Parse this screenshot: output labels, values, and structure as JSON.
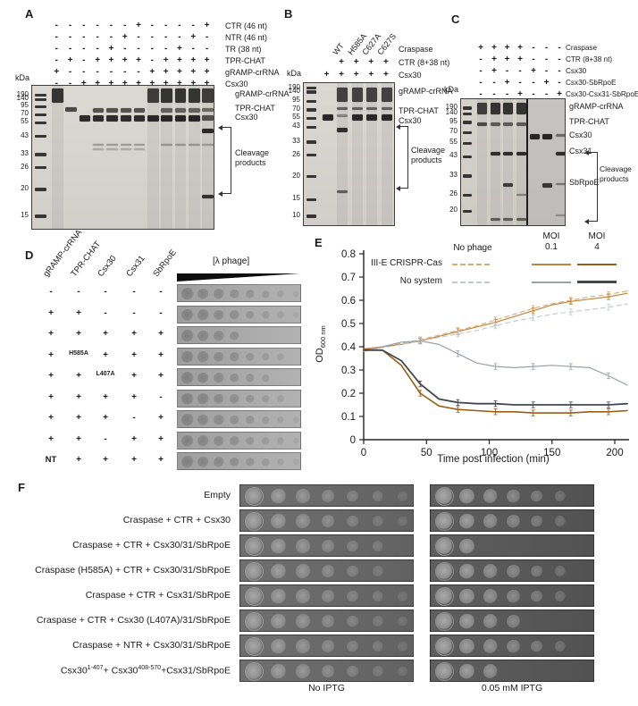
{
  "figure": {
    "panel_a": {
      "label": "A",
      "kda": "kDa",
      "conditions": [
        {
          "label": "CTR (46 nt)",
          "signs": [
            "-",
            "-",
            "-",
            "-",
            "-",
            "-",
            "+",
            "-",
            "-",
            "-",
            "-",
            "+"
          ]
        },
        {
          "label": "NTR (46 nt)",
          "signs": [
            "-",
            "-",
            "-",
            "-",
            "-",
            "+",
            "-",
            "-",
            "-",
            "-",
            "+",
            "-"
          ]
        },
        {
          "label": "TR (38 nt)",
          "signs": [
            "-",
            "-",
            "-",
            "-",
            "+",
            "-",
            "-",
            "-",
            "-",
            "+",
            "-",
            "-"
          ]
        },
        {
          "label": "TPR-CHAT",
          "signs": [
            "-",
            "+",
            "-",
            "+",
            "+",
            "+",
            "+",
            "-",
            "+",
            "+",
            "+",
            "+"
          ]
        },
        {
          "label": "gRAMP-crRNA",
          "signs": [
            "+",
            "-",
            "-",
            "-",
            "-",
            "-",
            "-",
            "+",
            "+",
            "+",
            "+",
            "+"
          ]
        },
        {
          "label": "Csx30",
          "signs": [
            "-",
            "-",
            "+",
            "+",
            "+",
            "+",
            "+",
            "+",
            "+",
            "+",
            "+",
            "+"
          ]
        }
      ],
      "markers_kda": [
        190,
        140,
        95,
        70,
        55,
        43,
        33,
        26,
        20,
        15
      ],
      "band_labels": [
        "gRAMP-crRNA",
        "TPR-CHAT",
        "Csx30"
      ],
      "cleavage_label": "Cleavage products",
      "lanes": [
        [
          [
            0.02,
            0.1,
            0.85
          ]
        ],
        [
          [
            0.15,
            0.03,
            0.75
          ]
        ],
        [
          [
            0.205,
            0.042,
            0.9
          ]
        ],
        [
          [
            0.155,
            0.028,
            0.7
          ],
          [
            0.205,
            0.042,
            0.9
          ],
          [
            0.4,
            0.016,
            0.3
          ],
          [
            0.435,
            0.012,
            0.22
          ]
        ],
        [
          [
            0.155,
            0.028,
            0.7
          ],
          [
            0.205,
            0.042,
            0.9
          ],
          [
            0.4,
            0.016,
            0.3
          ],
          [
            0.435,
            0.012,
            0.22
          ]
        ],
        [
          [
            0.155,
            0.028,
            0.7
          ],
          [
            0.205,
            0.042,
            0.9
          ],
          [
            0.4,
            0.016,
            0.3
          ],
          [
            0.435,
            0.012,
            0.22
          ]
        ],
        [
          [
            0.155,
            0.028,
            0.7
          ],
          [
            0.205,
            0.042,
            0.9
          ],
          [
            0.4,
            0.016,
            0.3
          ],
          [
            0.435,
            0.012,
            0.22
          ]
        ],
        [
          [
            0.02,
            0.1,
            0.8
          ],
          [
            0.205,
            0.044,
            0.92
          ]
        ],
        [
          [
            0.02,
            0.1,
            0.85
          ],
          [
            0.155,
            0.028,
            0.6
          ],
          [
            0.205,
            0.044,
            0.92
          ],
          [
            0.4,
            0.016,
            0.3
          ]
        ],
        [
          [
            0.02,
            0.1,
            0.85
          ],
          [
            0.155,
            0.028,
            0.6
          ],
          [
            0.205,
            0.044,
            0.92
          ],
          [
            0.4,
            0.016,
            0.3
          ]
        ],
        [
          [
            0.02,
            0.1,
            0.85
          ],
          [
            0.155,
            0.028,
            0.6
          ],
          [
            0.205,
            0.044,
            0.92
          ],
          [
            0.4,
            0.016,
            0.3
          ]
        ],
        [
          [
            0.02,
            0.1,
            0.8
          ],
          [
            0.155,
            0.026,
            0.55
          ],
          [
            0.205,
            0.038,
            0.7
          ],
          [
            0.295,
            0.03,
            0.9
          ],
          [
            0.4,
            0.016,
            0.28
          ],
          [
            0.755,
            0.024,
            0.85
          ]
        ]
      ]
    },
    "panel_b": {
      "label": "B",
      "kda": "kDa",
      "variant_group_label": "Craspase",
      "variants": [
        "WT",
        "H585A",
        "C627A",
        "C627S"
      ],
      "conditions": [
        {
          "label": "CTR (8+38 nt)",
          "signs": [
            "",
            "+",
            "+",
            "+",
            "+"
          ]
        },
        {
          "label": "Csx30",
          "signs": [
            "+",
            "+",
            "+",
            "+",
            "+"
          ]
        }
      ],
      "markers_kda": [
        190,
        140,
        95,
        70,
        55,
        43,
        33,
        26,
        20,
        15,
        10
      ],
      "band_labels": [
        "gRAMP-crRNA",
        "TPR-CHAT",
        "Csx30"
      ],
      "cleavage_label": "Cleavage products",
      "lanes": [
        [
          [
            0.215,
            0.048,
            0.92
          ]
        ],
        [
          [
            0.03,
            0.1,
            0.78
          ],
          [
            0.165,
            0.022,
            0.6
          ],
          [
            0.215,
            0.02,
            0.4
          ],
          [
            0.31,
            0.034,
            0.88
          ],
          [
            0.745,
            0.018,
            0.6
          ]
        ],
        [
          [
            0.03,
            0.1,
            0.78
          ],
          [
            0.165,
            0.022,
            0.6
          ],
          [
            0.215,
            0.044,
            0.92
          ]
        ],
        [
          [
            0.03,
            0.1,
            0.78
          ],
          [
            0.165,
            0.022,
            0.6
          ],
          [
            0.215,
            0.044,
            0.92
          ]
        ],
        [
          [
            0.03,
            0.1,
            0.78
          ],
          [
            0.165,
            0.022,
            0.6
          ],
          [
            0.215,
            0.044,
            0.92
          ]
        ]
      ]
    },
    "panel_c": {
      "label": "C",
      "kda": "kDa",
      "conditions": [
        {
          "label": "Craspase",
          "signs": [
            "+",
            "+",
            "+",
            "+",
            "-",
            "-",
            "-"
          ]
        },
        {
          "label": "CTR (8+38 nt)",
          "signs": [
            "-",
            "+",
            "+",
            "+",
            "-",
            "-",
            "-"
          ]
        },
        {
          "label": "Csx30",
          "signs": [
            "-",
            "+",
            "-",
            "-",
            "+",
            "-",
            "-"
          ]
        },
        {
          "label": "Csx30-SbRpoE",
          "signs": [
            "-",
            "-",
            "+",
            "-",
            "-",
            "+",
            "-"
          ]
        },
        {
          "label": "Csx30-Csx31-SbRpoE",
          "signs": [
            "-",
            "-",
            "-",
            "+",
            "-",
            "-",
            "+"
          ]
        }
      ],
      "markers_kda": [
        190,
        140,
        95,
        70,
        55,
        43,
        33,
        26,
        20
      ],
      "band_labels": [
        "gRAMP-crRNA",
        "TPR-CHAT",
        "Csx30",
        "Csx31",
        "SbRpoE"
      ],
      "cleavage_label": "Cleavage products",
      "lanes": [
        [
          [
            0.03,
            0.09,
            0.8
          ],
          [
            0.185,
            0.022,
            0.72
          ]
        ],
        [
          [
            0.03,
            0.09,
            0.85
          ],
          [
            0.185,
            0.022,
            0.62
          ],
          [
            0.41,
            0.032,
            0.88
          ],
          [
            0.93,
            0.018,
            0.6
          ]
        ],
        [
          [
            0.03,
            0.09,
            0.85
          ],
          [
            0.185,
            0.022,
            0.62
          ],
          [
            0.41,
            0.032,
            0.88
          ],
          [
            0.655,
            0.032,
            0.8
          ],
          [
            0.93,
            0.018,
            0.6
          ]
        ],
        [
          [
            0.03,
            0.09,
            0.85
          ],
          [
            0.185,
            0.022,
            0.62
          ],
          [
            0.41,
            0.032,
            0.88
          ],
          [
            0.74,
            0.018,
            0.4
          ],
          [
            0.93,
            0.018,
            0.6
          ]
        ],
        [
          [
            0.275,
            0.042,
            0.92
          ]
        ],
        [
          [
            0.275,
            0.042,
            0.92
          ],
          [
            0.655,
            0.034,
            0.82
          ]
        ],
        [
          [
            0.275,
            0.022,
            0.5
          ],
          [
            0.41,
            0.034,
            0.88
          ],
          [
            0.655,
            0.018,
            0.45
          ],
          [
            0.9,
            0.014,
            0.3
          ]
        ]
      ]
    },
    "panel_d": {
      "label": "D",
      "columns": [
        "gRAMP-crRNA",
        "TPR-CHAT",
        "Csx30",
        "Csx31",
        "SbRpoE"
      ],
      "phage_label": "[λ phage]",
      "rows": [
        {
          "signs": [
            "-",
            "-",
            "-",
            "-",
            "-"
          ],
          "spots": 8
        },
        {
          "signs": [
            "+",
            "+",
            "-",
            "-",
            "-"
          ],
          "spots": 8
        },
        {
          "signs": [
            "+",
            "+",
            "+",
            "+",
            "+"
          ],
          "spots": 4
        },
        {
          "signs": [
            "+",
            "H585A",
            "+",
            "+",
            "+"
          ],
          "spots": 7
        },
        {
          "signs": [
            "+",
            "+",
            "L407A",
            "+",
            "+"
          ],
          "spots": 6
        },
        {
          "signs": [
            "+",
            "+",
            "+",
            "+",
            "-"
          ],
          "spots": 7
        },
        {
          "signs": [
            "+",
            "+",
            "+",
            "-",
            "+"
          ],
          "spots": 8
        },
        {
          "signs": [
            "+",
            "+",
            "-",
            "+",
            "+"
          ],
          "spots": 8
        },
        {
          "signs": [
            "NT",
            "+",
            "+",
            "+",
            "+"
          ],
          "spots": 8
        }
      ]
    },
    "panel_e": {
      "label": "E"
    },
    "panel_f": {
      "label": "F",
      "rows": [
        {
          "label": "Empty",
          "left_spots": 7,
          "right_spots": 6
        },
        {
          "label": "Craspase + CTR  + Csx30",
          "left_spots": 7,
          "right_spots": 6
        },
        {
          "label": "Craspase + CTR  + Csx30/31/SbRpoE",
          "left_spots": 6,
          "right_spots": 2
        },
        {
          "label": "Craspase (H585A) + CTR  + Csx30/31/SbRpoE",
          "left_spots": 6,
          "right_spots": 6
        },
        {
          "label": "Craspase + CTR  + Csx31/SbRpoE",
          "left_spots": 7,
          "right_spots": 6
        },
        {
          "label": "Craspase + CTR  + Csx30 (L407A)/31/SbRpoE",
          "left_spots": 7,
          "right_spots": 4
        },
        {
          "label": "Craspase + NTR  + Csx30/31/SbRpoE",
          "left_spots": 7,
          "right_spots": 6
        },
        {
          "label": "Csx30 1-407 + Csx30 408-570 + Csx31/SbRpoE",
          "parts": [
            "Csx30",
            "1-407",
            "+ Csx30",
            "408-570",
            "+Csx31/SbRpoE"
          ],
          "left_spots": 7,
          "right_spots": 3
        }
      ],
      "footer_left": "No IPTG",
      "footer_right": "0.05 mM IPTG"
    }
  },
  "chart_data": {
    "type": "line",
    "xlabel": "Time post infection (min)",
    "ylabel_prefix": "OD",
    "ylabel_sub": "600 nm",
    "xlim": [
      0,
      215
    ],
    "ylim": [
      0,
      0.8
    ],
    "ytick_step": 0.1,
    "xticks": [
      0,
      50,
      100,
      150,
      200
    ],
    "grid": false,
    "legend": {
      "position": "top-right",
      "col1": "No phage",
      "col2a": "MOI",
      "col2b": "0.1",
      "col3a": "MOI",
      "col3b": "4",
      "row1": "III-E CRISPR-Cas",
      "row2": "No system"
    },
    "x": [
      0,
      15,
      30,
      45,
      60,
      75,
      90,
      105,
      120,
      135,
      150,
      165,
      180,
      195,
      210
    ],
    "series": [
      {
        "name": "III-E CRISPR-Cas, No phage",
        "color": "#d8ab74",
        "dash": true,
        "width": 1.1,
        "values": [
          0.39,
          0.4,
          0.415,
          0.43,
          0.45,
          0.47,
          0.49,
          0.515,
          0.54,
          0.565,
          0.585,
          0.6,
          0.615,
          0.625,
          0.64
        ]
      },
      {
        "name": "III-E CRISPR-Cas, MOI 0.1",
        "color": "#c0853e",
        "dash": false,
        "width": 1.2,
        "values": [
          0.39,
          0.4,
          0.41,
          0.425,
          0.445,
          0.465,
          0.485,
          0.505,
          0.53,
          0.555,
          0.58,
          0.595,
          0.605,
          0.615,
          0.63
        ]
      },
      {
        "name": "III-E CRISPR-Cas, MOI 4",
        "color": "#9c5d15",
        "dash": false,
        "width": 1.6,
        "values": [
          0.39,
          0.385,
          0.32,
          0.2,
          0.145,
          0.13,
          0.125,
          0.12,
          0.12,
          0.115,
          0.115,
          0.115,
          0.12,
          0.12,
          0.125
        ]
      },
      {
        "name": "No system, No phage",
        "color": "#c3c9d2",
        "dash": true,
        "width": 1.1,
        "values": [
          0.38,
          0.395,
          0.41,
          0.425,
          0.44,
          0.455,
          0.47,
          0.49,
          0.51,
          0.525,
          0.54,
          0.55,
          0.56,
          0.57,
          0.585
        ]
      },
      {
        "name": "No system, MOI 0.1",
        "color": "#9aa1a8",
        "dash": false,
        "width": 1.2,
        "values": [
          0.38,
          0.4,
          0.42,
          0.425,
          0.41,
          0.37,
          0.33,
          0.315,
          0.31,
          0.315,
          0.32,
          0.315,
          0.31,
          0.275,
          0.235
        ]
      },
      {
        "name": "No system, MOI 4",
        "color": "#44484c",
        "dash": false,
        "width": 1.8,
        "values": [
          0.385,
          0.385,
          0.34,
          0.24,
          0.175,
          0.16,
          0.155,
          0.155,
          0.15,
          0.15,
          0.15,
          0.15,
          0.15,
          0.15,
          0.155
        ]
      }
    ]
  }
}
